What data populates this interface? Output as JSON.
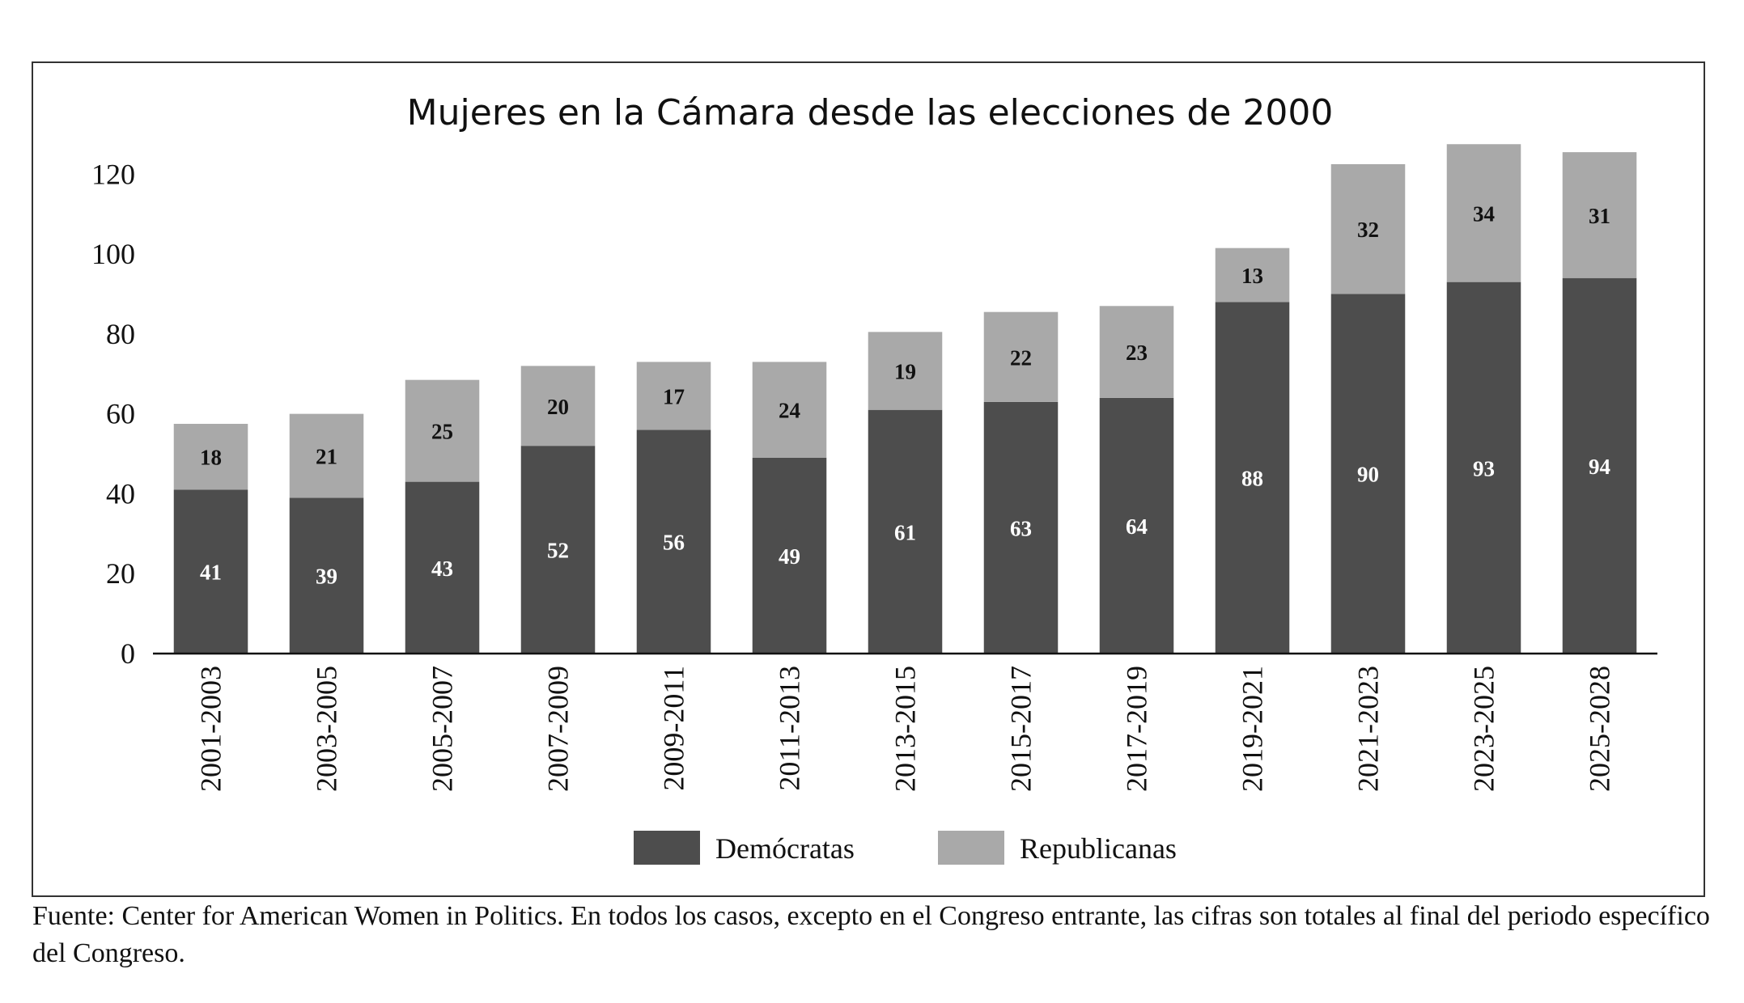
{
  "chart_data": {
    "type": "bar",
    "stacked": true,
    "title": "Mujeres en la Cámara desde las elecciones de 2000",
    "xlabel": "",
    "ylabel": "",
    "ylim": [
      0,
      120
    ],
    "yticks": [
      0,
      20,
      40,
      60,
      80,
      100,
      120
    ],
    "grid": false,
    "legend_position": "bottom",
    "categories": [
      "2001-2003",
      "2003-2005",
      "2005-2007",
      "2007-2009",
      "2009-2011",
      "2011-2013",
      "2013-2015",
      "2015-2017",
      "2017-2019",
      "2019-2021",
      "2021-2023",
      "2023-2025",
      "2025-2028"
    ],
    "series": [
      {
        "name": "Demócratas",
        "color": "#4d4d4d",
        "label_color": "#ffffff",
        "values": [
          41,
          39,
          43,
          52,
          56,
          49,
          61,
          63,
          64,
          88,
          90,
          93,
          94
        ]
      },
      {
        "name": "Republicanas",
        "color": "#a9a9a9",
        "label_color": "#111111",
        "values": [
          18,
          21,
          25,
          20,
          17,
          24,
          19,
          22,
          23,
          13,
          32,
          34,
          31
        ]
      }
    ],
    "bar_totals": [
      57.5,
      60,
      68.5,
      72,
      73,
      73,
      80.5,
      85.5,
      87,
      101.5,
      122.5,
      127.5,
      125.5
    ],
    "label_positions": [
      [
        [
          29,
          18
        ],
        [
          34,
          21
        ],
        [
          43,
          25
        ],
        [
          45,
          20
        ],
        [
          50,
          17
        ],
        [
          49,
          24
        ],
        [
          61,
          19
        ],
        [
          63,
          22
        ],
        [
          64,
          23
        ],
        [
          88,
          13
        ],
        [
          90,
          32
        ],
        [
          93,
          34
        ],
        [
          94,
          31
        ]
      ],
      [
        [
          49,
          111
        ],
        [
          53,
          106
        ],
        [
          59,
          117
        ],
        [
          64,
          153
        ],
        [
          64,
          202
        ],
        [
          65,
          218
        ],
        [
          70,
          199
        ],
        [
          78,
          263
        ],
        [
          77,
          233
        ],
        [
          95,
          283
        ],
        [
          115,
          324
        ],
        [
          117,
          325
        ],
        [
          113,
          318
        ]
      ]
    ]
  },
  "source_note": "Fuente: Center for American Women in Politics. En todos los casos, excepto en el Congreso entrante, las cifras son totales al final del periodo específico del Congreso."
}
